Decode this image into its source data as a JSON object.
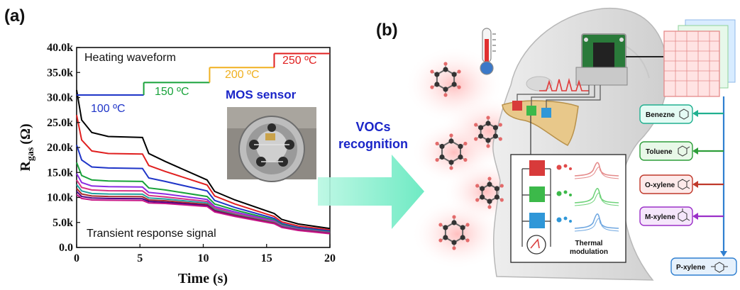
{
  "panel_a_label": "(a)",
  "panel_b_label": "(b)",
  "chart_data": {
    "type": "line",
    "xlabel": "Time (s)",
    "ylabel_main": "R",
    "ylabel_sub": "gas",
    "ylabel_unit": "(Ω)",
    "xlim": [
      0,
      20
    ],
    "ylim": [
      0,
      40000
    ],
    "x_ticks": [
      0,
      5,
      10,
      15,
      20
    ],
    "x_tick_labels": [
      "0",
      "5",
      "10",
      "15",
      "20"
    ],
    "y_ticks": [
      0,
      5000,
      10000,
      15000,
      20000,
      25000,
      30000,
      35000,
      40000
    ],
    "y_tick_labels": [
      "0.0",
      "5.0k",
      "10.0k",
      "15.0k",
      "20.0k",
      "25.0k",
      "30.0k",
      "35.0k",
      "40.0k"
    ],
    "grid": false,
    "heating_waveform": {
      "label": "Heating waveform",
      "steps": [
        {
          "label": "100 ºC",
          "x_start": 0,
          "x_end": 5.3,
          "level": 30500,
          "color": "#1f35c8"
        },
        {
          "label": "150 ºC",
          "x_start": 5.3,
          "x_end": 10.5,
          "level": 33000,
          "color": "#18a23a"
        },
        {
          "label": "200 ºC",
          "x_start": 10.5,
          "x_end": 15.6,
          "level": 36000,
          "color": "#f0b020"
        },
        {
          "label": "250 ºC",
          "x_start": 15.6,
          "x_end": 20,
          "level": 38800,
          "color": "#e02020"
        }
      ]
    },
    "sensor_label": "MOS sensor",
    "bottom_label": "Transient response signal",
    "series": [
      {
        "color": "#000000",
        "values": [
          [
            0,
            31500
          ],
          [
            0.4,
            25500
          ],
          [
            1.2,
            23000
          ],
          [
            2.5,
            22200
          ],
          [
            5.2,
            22000
          ],
          [
            5.7,
            18800
          ],
          [
            7,
            17200
          ],
          [
            10.3,
            13500
          ],
          [
            10.9,
            11200
          ],
          [
            12.5,
            9500
          ],
          [
            15.6,
            6800
          ],
          [
            16.2,
            5600
          ],
          [
            17.5,
            4700
          ],
          [
            20,
            3800
          ]
        ]
      },
      {
        "color": "#e02020",
        "values": [
          [
            0,
            26500
          ],
          [
            0.4,
            21500
          ],
          [
            1.2,
            19300
          ],
          [
            2.5,
            18800
          ],
          [
            5.2,
            18700
          ],
          [
            5.7,
            16400
          ],
          [
            7,
            15200
          ],
          [
            10.3,
            12500
          ],
          [
            10.9,
            10300
          ],
          [
            12.5,
            8700
          ],
          [
            15.6,
            6200
          ],
          [
            16.2,
            5100
          ],
          [
            17.5,
            4300
          ],
          [
            20,
            3500
          ]
        ]
      },
      {
        "color": "#1f35c8",
        "values": [
          [
            0,
            20500
          ],
          [
            0.4,
            17500
          ],
          [
            1.2,
            16100
          ],
          [
            2.5,
            15900
          ],
          [
            5.2,
            15800
          ],
          [
            5.7,
            13900
          ],
          [
            7,
            13200
          ],
          [
            10.3,
            11300
          ],
          [
            10.9,
            9400
          ],
          [
            12.5,
            8000
          ],
          [
            15.6,
            5800
          ],
          [
            16.2,
            4800
          ],
          [
            17.5,
            4000
          ],
          [
            20,
            3300
          ]
        ]
      },
      {
        "color": "#18a23a",
        "values": [
          [
            0,
            17000
          ],
          [
            0.4,
            14400
          ],
          [
            1.2,
            13500
          ],
          [
            2.5,
            13300
          ],
          [
            5.2,
            13200
          ],
          [
            5.7,
            11900
          ],
          [
            7,
            11500
          ],
          [
            10.3,
            10200
          ],
          [
            10.9,
            8700
          ],
          [
            12.5,
            7500
          ],
          [
            15.6,
            5500
          ],
          [
            16.2,
            4600
          ],
          [
            17.5,
            3800
          ],
          [
            20,
            3100
          ]
        ]
      },
      {
        "color": "#8a2be2",
        "values": [
          [
            0,
            14800
          ],
          [
            0.4,
            13000
          ],
          [
            1.2,
            12300
          ],
          [
            2.5,
            12150
          ],
          [
            5.2,
            12100
          ],
          [
            5.7,
            11000
          ],
          [
            7,
            10700
          ],
          [
            10.3,
            9600
          ],
          [
            10.9,
            8200
          ],
          [
            12.5,
            7100
          ],
          [
            15.6,
            5300
          ],
          [
            16.2,
            4400
          ],
          [
            17.5,
            3700
          ],
          [
            20,
            3000
          ]
        ]
      },
      {
        "color": "#d63384",
        "values": [
          [
            0,
            13500
          ],
          [
            0.4,
            12000
          ],
          [
            1.2,
            11500
          ],
          [
            2.5,
            11350
          ],
          [
            5.2,
            11300
          ],
          [
            5.7,
            10400
          ],
          [
            7,
            10100
          ],
          [
            10.3,
            9200
          ],
          [
            10.9,
            7900
          ],
          [
            12.5,
            6800
          ],
          [
            15.6,
            5100
          ],
          [
            16.2,
            4300
          ],
          [
            17.5,
            3600
          ],
          [
            20,
            2950
          ]
        ]
      },
      {
        "color": "#20a0a0",
        "values": [
          [
            0,
            12600
          ],
          [
            0.4,
            11300
          ],
          [
            1.2,
            10800
          ],
          [
            2.5,
            10700
          ],
          [
            5.2,
            10650
          ],
          [
            5.7,
            9900
          ],
          [
            7,
            9700
          ],
          [
            10.3,
            8900
          ],
          [
            10.9,
            7600
          ],
          [
            12.5,
            6600
          ],
          [
            15.6,
            5000
          ],
          [
            16.2,
            4200
          ],
          [
            17.5,
            3550
          ],
          [
            20,
            2900
          ]
        ]
      },
      {
        "color": "#a52a2a",
        "values": [
          [
            0,
            11800
          ],
          [
            0.4,
            10700
          ],
          [
            1.2,
            10300
          ],
          [
            2.5,
            10200
          ],
          [
            5.2,
            10150
          ],
          [
            5.7,
            9500
          ],
          [
            7,
            9350
          ],
          [
            10.3,
            8600
          ],
          [
            10.9,
            7400
          ],
          [
            12.5,
            6450
          ],
          [
            15.6,
            4900
          ],
          [
            16.2,
            4100
          ],
          [
            17.5,
            3500
          ],
          [
            20,
            2850
          ]
        ]
      },
      {
        "color": "#4b0082",
        "values": [
          [
            0,
            11200
          ],
          [
            0.4,
            10200
          ],
          [
            1.2,
            9900
          ],
          [
            2.5,
            9800
          ],
          [
            5.2,
            9750
          ],
          [
            5.7,
            9200
          ],
          [
            7,
            9050
          ],
          [
            10.3,
            8400
          ],
          [
            10.9,
            7250
          ],
          [
            12.5,
            6300
          ],
          [
            15.6,
            4800
          ],
          [
            16.2,
            4050
          ],
          [
            17.5,
            3450
          ],
          [
            20,
            2800
          ]
        ]
      },
      {
        "color": "#c71585",
        "values": [
          [
            0,
            10600
          ],
          [
            0.4,
            9800
          ],
          [
            1.2,
            9500
          ],
          [
            2.5,
            9450
          ],
          [
            5.2,
            9400
          ],
          [
            5.7,
            8900
          ],
          [
            7,
            8800
          ],
          [
            10.3,
            8200
          ],
          [
            10.9,
            7100
          ],
          [
            12.5,
            6200
          ],
          [
            15.6,
            4750
          ],
          [
            16.2,
            4000
          ],
          [
            17.5,
            3400
          ],
          [
            20,
            2750
          ]
        ]
      }
    ]
  },
  "arrow_label_line1": "VOCs",
  "arrow_label_line2": "recognition",
  "thermal_label_line1": "Thermal",
  "thermal_label_line2": "modulation",
  "vocs": [
    {
      "name": "Benezne",
      "color": "#20b090"
    },
    {
      "name": "Toluene",
      "color": "#2e9e3a"
    },
    {
      "name": "O-xylene",
      "color": "#c0392b"
    },
    {
      "name": "M-xylene",
      "color": "#9b30c8"
    },
    {
      "name": "P-xylene",
      "color": "#2f7fd0"
    }
  ],
  "colors": {
    "arrow": "#6ff0c8",
    "sensor_red": "#d83a3a",
    "sensor_green": "#3cb94a",
    "sensor_blue": "#2f97d8",
    "board": "#2a7a3a"
  }
}
